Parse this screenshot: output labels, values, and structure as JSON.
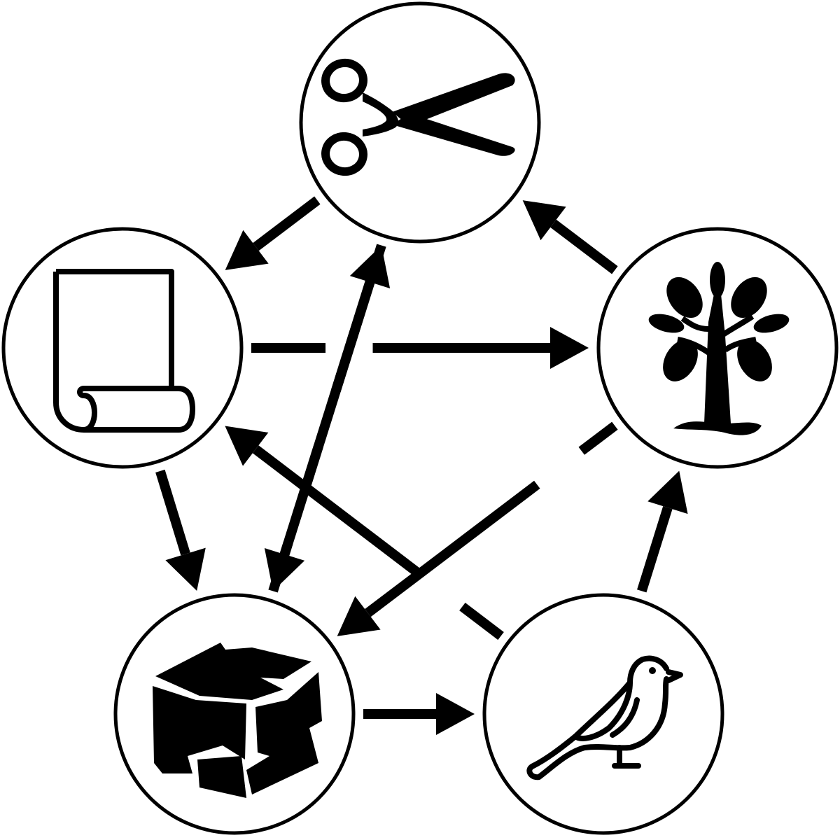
{
  "colors": {
    "ink": "#000000",
    "paper": "#ffffff"
  },
  "nodes": [
    {
      "id": "scissors",
      "icon": "scissors-icon"
    },
    {
      "id": "tree",
      "icon": "tree-icon"
    },
    {
      "id": "bird",
      "icon": "bird-icon"
    },
    {
      "id": "rock",
      "icon": "rock-icon"
    },
    {
      "id": "paper",
      "icon": "paper-scroll-icon"
    }
  ],
  "edges": [
    {
      "from": "scissors",
      "to": "paper"
    },
    {
      "from": "scissors",
      "to": "rock"
    },
    {
      "from": "paper",
      "to": "rock"
    },
    {
      "from": "paper",
      "to": "tree"
    },
    {
      "from": "rock",
      "to": "bird"
    },
    {
      "from": "rock",
      "to": "scissors"
    },
    {
      "from": "bird",
      "to": "tree"
    },
    {
      "from": "bird",
      "to": "paper"
    },
    {
      "from": "tree",
      "to": "scissors"
    },
    {
      "from": "tree",
      "to": "rock"
    }
  ]
}
